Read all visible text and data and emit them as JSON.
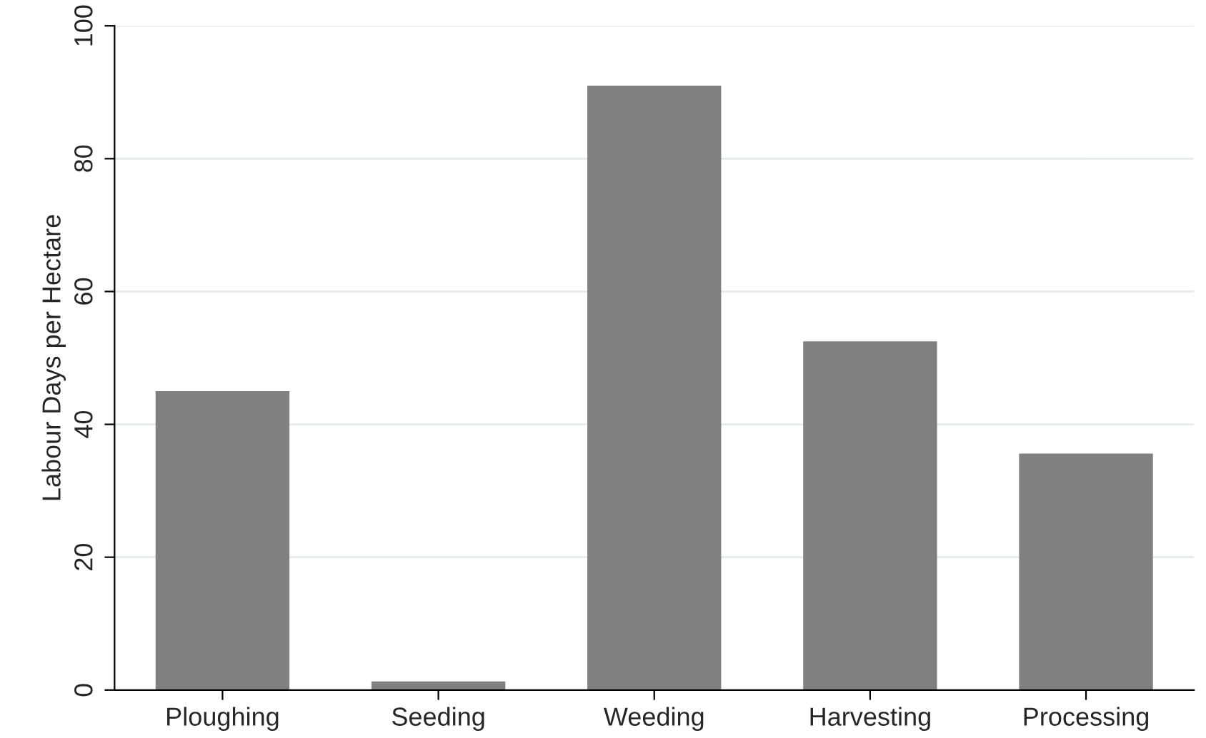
{
  "chart_data": {
    "type": "bar",
    "ylabel": "Labour Days per Hectare",
    "categories": [
      "Ploughing",
      "Seeding",
      "Weeding",
      "Harvesting",
      "Processing"
    ],
    "values": [
      45,
      1.3,
      91,
      52.5,
      35.6
    ],
    "color": "#808080",
    "ylim": [
      0,
      100
    ],
    "yticks": [
      0,
      20,
      40,
      60,
      80,
      100
    ],
    "grid": "y",
    "legend": false
  }
}
